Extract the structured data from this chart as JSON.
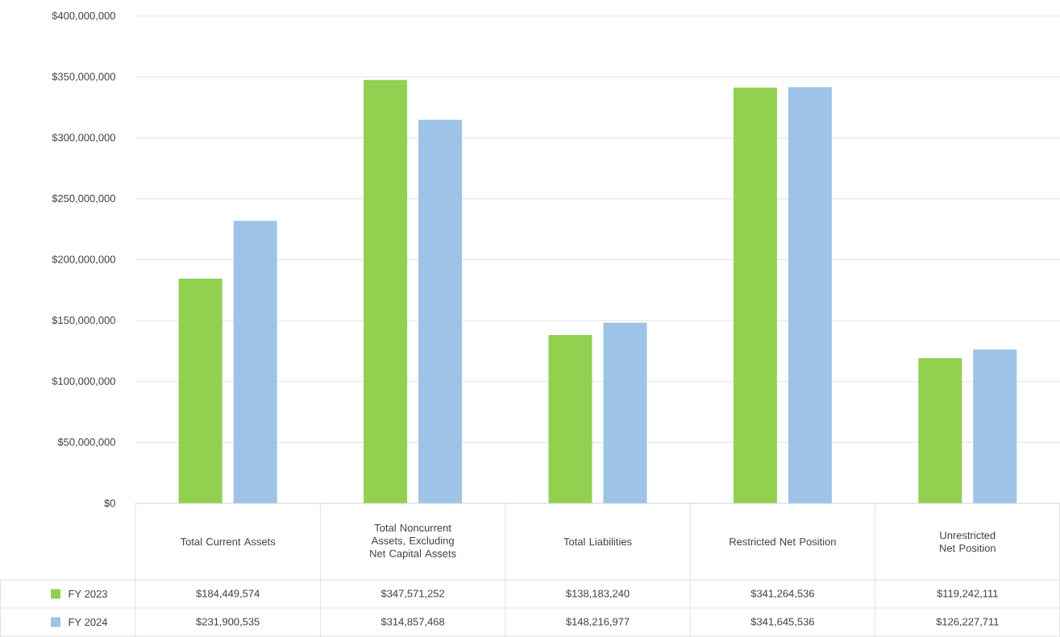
{
  "chart_data": {
    "type": "bar",
    "categories": [
      "Total Current Assets",
      "Total Noncurrent Assets, Excluding Net Capital Assets",
      "Total Liabilities",
      "Restricted Net Position",
      "Unrestricted Net Position"
    ],
    "series": [
      {
        "name": "FY 2023",
        "color": "#92d050",
        "values": [
          184449574,
          347571252,
          138183240,
          341264536,
          119242111
        ],
        "value_labels": [
          "$184,449,574",
          "$347,571,252",
          "$138,183,240",
          "$341,264,536",
          "$119,242,111"
        ]
      },
      {
        "name": "FY 2024",
        "color": "#9dc3e6",
        "values": [
          231900535,
          314857468,
          148216977,
          341645536,
          126227711
        ],
        "value_labels": [
          "$231,900,535",
          "$314,857,468",
          "$148,216,977",
          "$341,645,536",
          "$126,227,711"
        ]
      }
    ],
    "ylim": [
      0,
      400000000
    ],
    "yticks": [
      {
        "value": 0,
        "label": "$0"
      },
      {
        "value": 50000000,
        "label": "$50,000,000"
      },
      {
        "value": 100000000,
        "label": "$100,000,000"
      },
      {
        "value": 150000000,
        "label": "$150,000,000"
      },
      {
        "value": 200000000,
        "label": "$200,000,000"
      },
      {
        "value": 250000000,
        "label": "$250,000,000"
      },
      {
        "value": 300000000,
        "label": "$300,000,000"
      },
      {
        "value": 350000000,
        "label": "$350,000,000"
      },
      {
        "value": 400000000,
        "label": "$400,000,000"
      }
    ],
    "grid": "y",
    "legend": "bottom"
  }
}
